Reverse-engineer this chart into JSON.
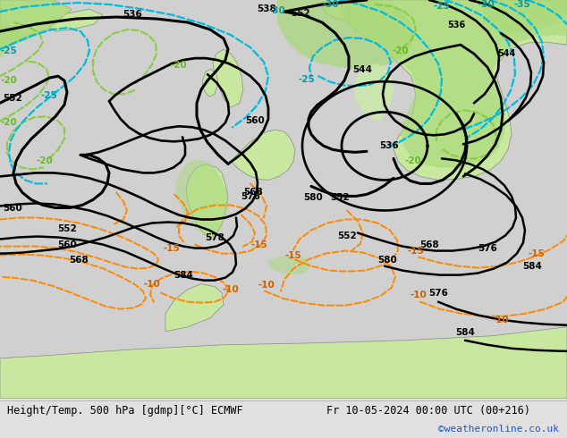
{
  "title_left": "Height/Temp. 500 hPa [gdmp][°C] ECMWF",
  "title_right": "Fr 10-05-2024 00:00 UTC (00+216)",
  "credit": "©weatheronline.co.uk",
  "bg_color": "#e0e0e0",
  "ocean_color": "#d8d8d8",
  "land_green": "#c8e8a0",
  "land_gray": "#b0b0b0",
  "bottom_bar_color": "#f0f0f0",
  "bottom_text_color": "#000000",
  "credit_color": "#2255cc",
  "figsize": [
    6.34,
    4.9
  ],
  "dpi": 100
}
